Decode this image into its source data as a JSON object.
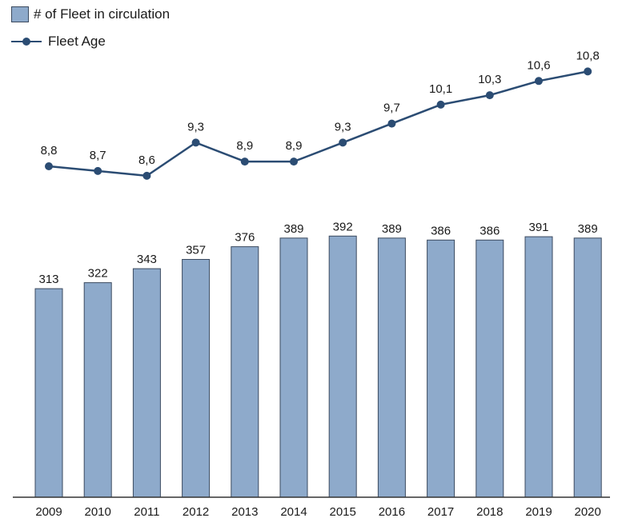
{
  "legend": {
    "bar_label": "# of Fleet in circulation",
    "line_label": "Fleet Age"
  },
  "colors": {
    "bar_fill": "#8eaacb",
    "bar_stroke": "#3b4a5f",
    "line": "#2b4c73",
    "axis": "#333333",
    "text": "#1a1a1a"
  },
  "chart_data": {
    "type": "bar",
    "categories": [
      "2009",
      "2010",
      "2011",
      "2012",
      "2013",
      "2014",
      "2015",
      "2016",
      "2017",
      "2018",
      "2019",
      "2020"
    ],
    "series": [
      {
        "name": "# of Fleet in circulation",
        "type": "bar",
        "values": [
          313,
          322,
          343,
          357,
          376,
          389,
          392,
          389,
          386,
          386,
          391,
          389
        ],
        "labels": [
          "313",
          "322",
          "343",
          "357",
          "376",
          "389",
          "392",
          "389",
          "386",
          "386",
          "391",
          "389"
        ]
      },
      {
        "name": "Fleet Age",
        "type": "line",
        "values": [
          8.8,
          8.7,
          8.6,
          9.3,
          8.9,
          8.9,
          9.3,
          9.7,
          10.1,
          10.3,
          10.6,
          10.8
        ],
        "labels": [
          "8,8",
          "8,7",
          "8,6",
          "9,3",
          "8,9",
          "8,9",
          "9,3",
          "9,7",
          "10,1",
          "10,3",
          "10,6",
          "10,8"
        ]
      }
    ],
    "title": "",
    "xlabel": "",
    "ylabel": "",
    "grid": false,
    "legend_position": "top-left"
  }
}
